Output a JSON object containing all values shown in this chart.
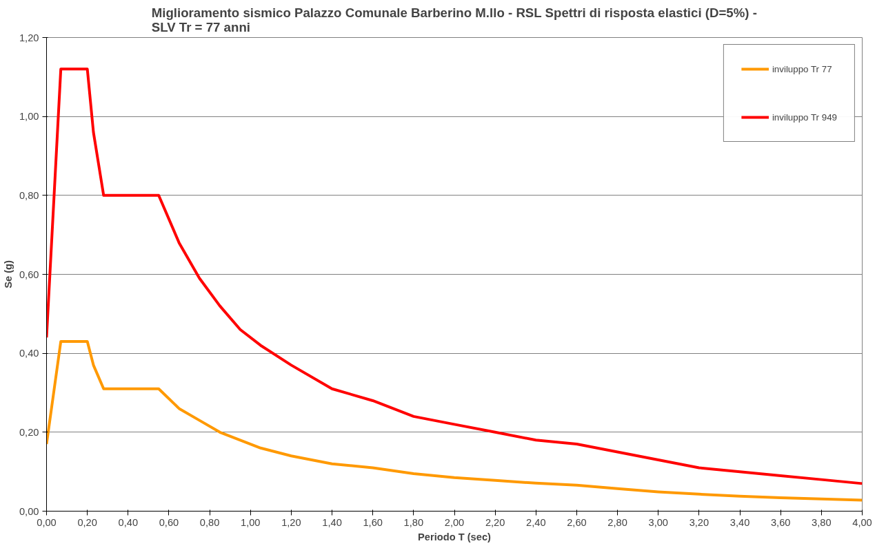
{
  "chart_data": {
    "type": "line",
    "title": "Miglioramento sismico Palazzo Comunale Barberino M.llo - RSL Spettri di risposta elastici (D=5%) -\nSLV Tr = 77 anni",
    "xlabel": "Periodo T (sec)",
    "ylabel": "Se (g)",
    "x": [
      0,
      0.07,
      0.2,
      0.23,
      0.28,
      0.55,
      0.65,
      0.75,
      0.85,
      0.95,
      1.05,
      1.2,
      1.4,
      1.6,
      1.8,
      2.0,
      2.2,
      2.4,
      2.6,
      2.8,
      3.0,
      3.2,
      3.4,
      3.6,
      3.8,
      4.0
    ],
    "series": [
      {
        "name": "inviluppo Tr 77",
        "color": "#ff9900",
        "values": [
          0.17,
          0.43,
          0.43,
          0.37,
          0.31,
          0.31,
          0.26,
          0.23,
          0.2,
          0.18,
          0.16,
          0.14,
          0.12,
          0.11,
          0.095,
          0.085,
          0.078,
          0.071,
          0.066,
          0.057,
          0.049,
          0.043,
          0.038,
          0.034,
          0.031,
          0.028
        ]
      },
      {
        "name": "inviluppo Tr 949",
        "color": "#ff0000",
        "values": [
          0.44,
          1.12,
          1.12,
          0.96,
          0.8,
          0.8,
          0.68,
          0.59,
          0.52,
          0.46,
          0.42,
          0.37,
          0.31,
          0.28,
          0.24,
          0.22,
          0.2,
          0.18,
          0.17,
          0.15,
          0.13,
          0.11,
          0.1,
          0.09,
          0.08,
          0.07
        ]
      }
    ],
    "xlim": [
      0,
      4.0
    ],
    "xticks": [
      {
        "value": 0,
        "label": "0,00"
      },
      {
        "value": 0.2,
        "label": "0,20"
      },
      {
        "value": 0.4,
        "label": "0,40"
      },
      {
        "value": 0.6,
        "label": "0,60"
      },
      {
        "value": 0.8,
        "label": "0,80"
      },
      {
        "value": 1.0,
        "label": "1,00"
      },
      {
        "value": 1.2,
        "label": "1,20"
      },
      {
        "value": 1.4,
        "label": "1,40"
      },
      {
        "value": 1.6,
        "label": "1,60"
      },
      {
        "value": 1.8,
        "label": "1,80"
      },
      {
        "value": 2.0,
        "label": "2,00"
      },
      {
        "value": 2.2,
        "label": "2,20"
      },
      {
        "value": 2.4,
        "label": "2,40"
      },
      {
        "value": 2.6,
        "label": "2,60"
      },
      {
        "value": 2.8,
        "label": "2,80"
      },
      {
        "value": 3.0,
        "label": "3,00"
      },
      {
        "value": 3.2,
        "label": "3,20"
      },
      {
        "value": 3.4,
        "label": "3,40"
      },
      {
        "value": 3.6,
        "label": "3,60"
      },
      {
        "value": 3.8,
        "label": "3,80"
      },
      {
        "value": 4.0,
        "label": "4,00"
      }
    ],
    "ylim": [
      0,
      1.2
    ],
    "yticks": [
      {
        "value": 0,
        "label": "0,00"
      },
      {
        "value": 0.2,
        "label": "0,20"
      },
      {
        "value": 0.4,
        "label": "0,40"
      },
      {
        "value": 0.6,
        "label": "0,60"
      },
      {
        "value": 0.8,
        "label": "0,80"
      },
      {
        "value": 1.0,
        "label": "1,00"
      },
      {
        "value": 1.2,
        "label": "1,20"
      }
    ],
    "grid": "y",
    "legend": "top right",
    "marker": "none",
    "line_style": "solid"
  }
}
